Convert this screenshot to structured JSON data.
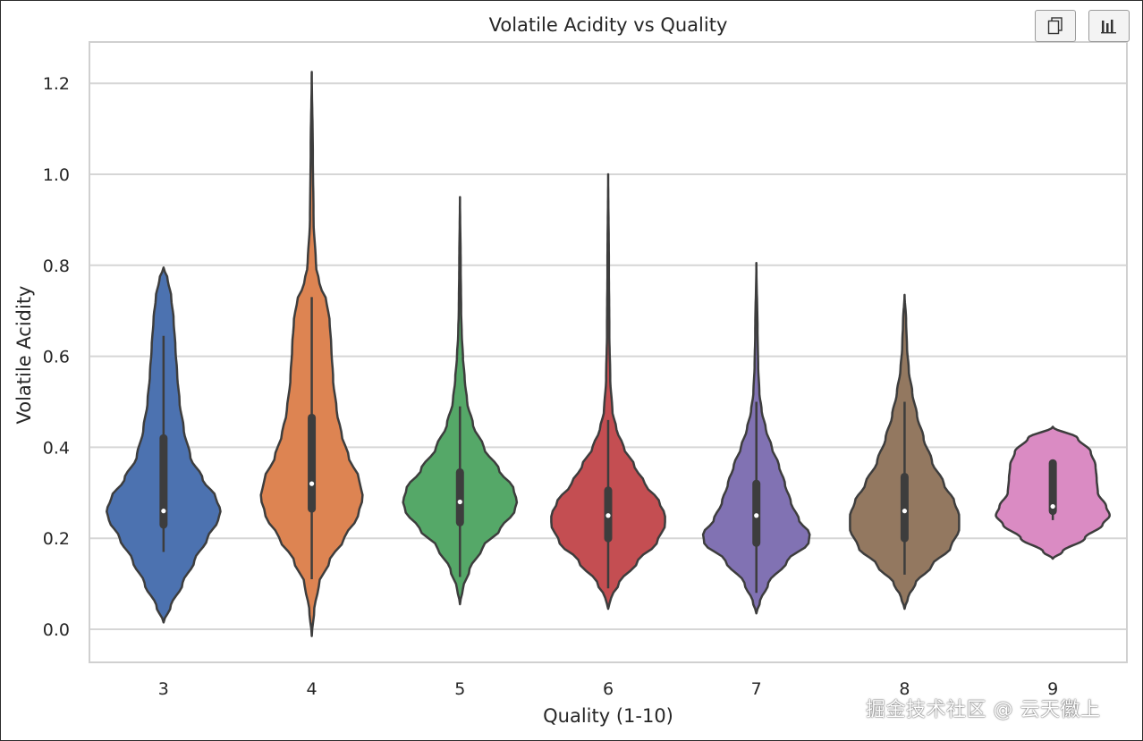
{
  "chart_data": {
    "type": "violin",
    "title": "Volatile Acidity vs Quality",
    "xlabel": "Quality (1-10)",
    "ylabel": "Volatile Acidity",
    "ylim": [
      -0.075,
      1.3
    ],
    "yticks": [
      0.0,
      0.2,
      0.4,
      0.6,
      0.8,
      1.0,
      1.2
    ],
    "ytick_labels": [
      "0.0",
      "0.2",
      "0.4",
      "0.6",
      "0.8",
      "1.0",
      "1.2"
    ],
    "grid": "horizontal",
    "categories": [
      "3",
      "4",
      "5",
      "6",
      "7",
      "8",
      "9"
    ],
    "colors": [
      "#4c72b0",
      "#dd8452",
      "#55a868",
      "#c44e52",
      "#8172b3",
      "#937860",
      "#da8bc3"
    ],
    "series": [
      {
        "name": "3",
        "min": 0.17,
        "q1": 0.23,
        "median": 0.26,
        "q3": 0.42,
        "max": 0.645,
        "kde_min": 0.015,
        "kde_max": 0.795,
        "profile": [
          [
            0.015,
            0.0
          ],
          [
            0.05,
            0.12
          ],
          [
            0.1,
            0.32
          ],
          [
            0.15,
            0.52
          ],
          [
            0.2,
            0.74
          ],
          [
            0.24,
            0.92
          ],
          [
            0.26,
            0.96
          ],
          [
            0.29,
            0.88
          ],
          [
            0.33,
            0.66
          ],
          [
            0.38,
            0.45
          ],
          [
            0.44,
            0.34
          ],
          [
            0.5,
            0.27
          ],
          [
            0.56,
            0.23
          ],
          [
            0.62,
            0.2
          ],
          [
            0.68,
            0.17
          ],
          [
            0.73,
            0.13
          ],
          [
            0.77,
            0.07
          ],
          [
            0.795,
            0.0
          ]
        ]
      },
      {
        "name": "4",
        "min": 0.11,
        "q1": 0.265,
        "median": 0.32,
        "q3": 0.465,
        "max": 0.73,
        "kde_min": -0.015,
        "kde_max": 1.225,
        "profile": [
          [
            -0.015,
            0.0
          ],
          [
            0.04,
            0.04
          ],
          [
            0.1,
            0.12
          ],
          [
            0.15,
            0.3
          ],
          [
            0.2,
            0.55
          ],
          [
            0.25,
            0.78
          ],
          [
            0.29,
            0.86
          ],
          [
            0.33,
            0.8
          ],
          [
            0.38,
            0.62
          ],
          [
            0.43,
            0.5
          ],
          [
            0.48,
            0.42
          ],
          [
            0.55,
            0.36
          ],
          [
            0.62,
            0.33
          ],
          [
            0.68,
            0.3
          ],
          [
            0.72,
            0.25
          ],
          [
            0.76,
            0.13
          ],
          [
            0.8,
            0.07
          ],
          [
            0.9,
            0.03
          ],
          [
            1.05,
            0.018
          ],
          [
            1.225,
            0.0
          ]
        ]
      },
      {
        "name": "5",
        "min": 0.115,
        "q1": 0.235,
        "median": 0.28,
        "q3": 0.345,
        "max": 0.49,
        "kde_min": 0.055,
        "kde_max": 0.95,
        "profile": [
          [
            0.055,
            0.0
          ],
          [
            0.09,
            0.05
          ],
          [
            0.13,
            0.16
          ],
          [
            0.18,
            0.38
          ],
          [
            0.22,
            0.68
          ],
          [
            0.26,
            0.92
          ],
          [
            0.28,
            0.96
          ],
          [
            0.31,
            0.9
          ],
          [
            0.35,
            0.66
          ],
          [
            0.4,
            0.4
          ],
          [
            0.45,
            0.22
          ],
          [
            0.5,
            0.12
          ],
          [
            0.55,
            0.08
          ],
          [
            0.6,
            0.05
          ],
          [
            0.65,
            0.03
          ],
          [
            0.7,
            0.02
          ],
          [
            0.8,
            0.012
          ],
          [
            0.95,
            0.0
          ]
        ]
      },
      {
        "name": "6",
        "min": 0.09,
        "q1": 0.2,
        "median": 0.25,
        "q3": 0.305,
        "max": 0.46,
        "kde_min": 0.045,
        "kde_max": 1.0,
        "profile": [
          [
            0.045,
            0.0
          ],
          [
            0.07,
            0.05
          ],
          [
            0.1,
            0.18
          ],
          [
            0.15,
            0.5
          ],
          [
            0.19,
            0.82
          ],
          [
            0.23,
            0.96
          ],
          [
            0.25,
            0.96
          ],
          [
            0.28,
            0.86
          ],
          [
            0.32,
            0.62
          ],
          [
            0.36,
            0.44
          ],
          [
            0.4,
            0.26
          ],
          [
            0.44,
            0.14
          ],
          [
            0.48,
            0.07
          ],
          [
            0.55,
            0.035
          ],
          [
            0.65,
            0.02
          ],
          [
            0.8,
            0.012
          ],
          [
            1.0,
            0.0
          ]
        ]
      },
      {
        "name": "7",
        "min": 0.08,
        "q1": 0.19,
        "median": 0.25,
        "q3": 0.32,
        "max": 0.5,
        "kde_min": 0.035,
        "kde_max": 0.805,
        "profile": [
          [
            0.035,
            0.0
          ],
          [
            0.06,
            0.06
          ],
          [
            0.1,
            0.2
          ],
          [
            0.15,
            0.52
          ],
          [
            0.19,
            0.88
          ],
          [
            0.21,
            0.9
          ],
          [
            0.24,
            0.72
          ],
          [
            0.28,
            0.58
          ],
          [
            0.32,
            0.48
          ],
          [
            0.36,
            0.38
          ],
          [
            0.4,
            0.26
          ],
          [
            0.44,
            0.16
          ],
          [
            0.48,
            0.09
          ],
          [
            0.52,
            0.05
          ],
          [
            0.58,
            0.03
          ],
          [
            0.65,
            0.02
          ],
          [
            0.805,
            0.0
          ]
        ]
      },
      {
        "name": "8",
        "min": 0.12,
        "q1": 0.2,
        "median": 0.26,
        "q3": 0.335,
        "max": 0.5,
        "kde_min": 0.045,
        "kde_max": 0.735,
        "profile": [
          [
            0.045,
            0.0
          ],
          [
            0.07,
            0.06
          ],
          [
            0.1,
            0.18
          ],
          [
            0.14,
            0.46
          ],
          [
            0.18,
            0.78
          ],
          [
            0.22,
            0.92
          ],
          [
            0.25,
            0.92
          ],
          [
            0.28,
            0.84
          ],
          [
            0.32,
            0.66
          ],
          [
            0.37,
            0.46
          ],
          [
            0.42,
            0.32
          ],
          [
            0.47,
            0.21
          ],
          [
            0.52,
            0.13
          ],
          [
            0.57,
            0.07
          ],
          [
            0.62,
            0.04
          ],
          [
            0.68,
            0.025
          ],
          [
            0.735,
            0.0
          ]
        ]
      },
      {
        "name": "9",
        "min": 0.24,
        "q1": 0.26,
        "median": 0.27,
        "q3": 0.365,
        "max": 0.37,
        "kde_min": 0.155,
        "kde_max": 0.445,
        "profile": [
          [
            0.155,
            0.0
          ],
          [
            0.17,
            0.16
          ],
          [
            0.2,
            0.54
          ],
          [
            0.23,
            0.84
          ],
          [
            0.25,
            0.96
          ],
          [
            0.27,
            0.9
          ],
          [
            0.3,
            0.76
          ],
          [
            0.33,
            0.74
          ],
          [
            0.36,
            0.72
          ],
          [
            0.39,
            0.64
          ],
          [
            0.42,
            0.42
          ],
          [
            0.445,
            0.0
          ]
        ]
      }
    ]
  },
  "toolbar": {
    "copy_icon": "copy-icon",
    "chart_icon": "bar-chart-icon"
  },
  "watermark": {
    "text": "掘金技术社区 @ 云天徽上"
  }
}
